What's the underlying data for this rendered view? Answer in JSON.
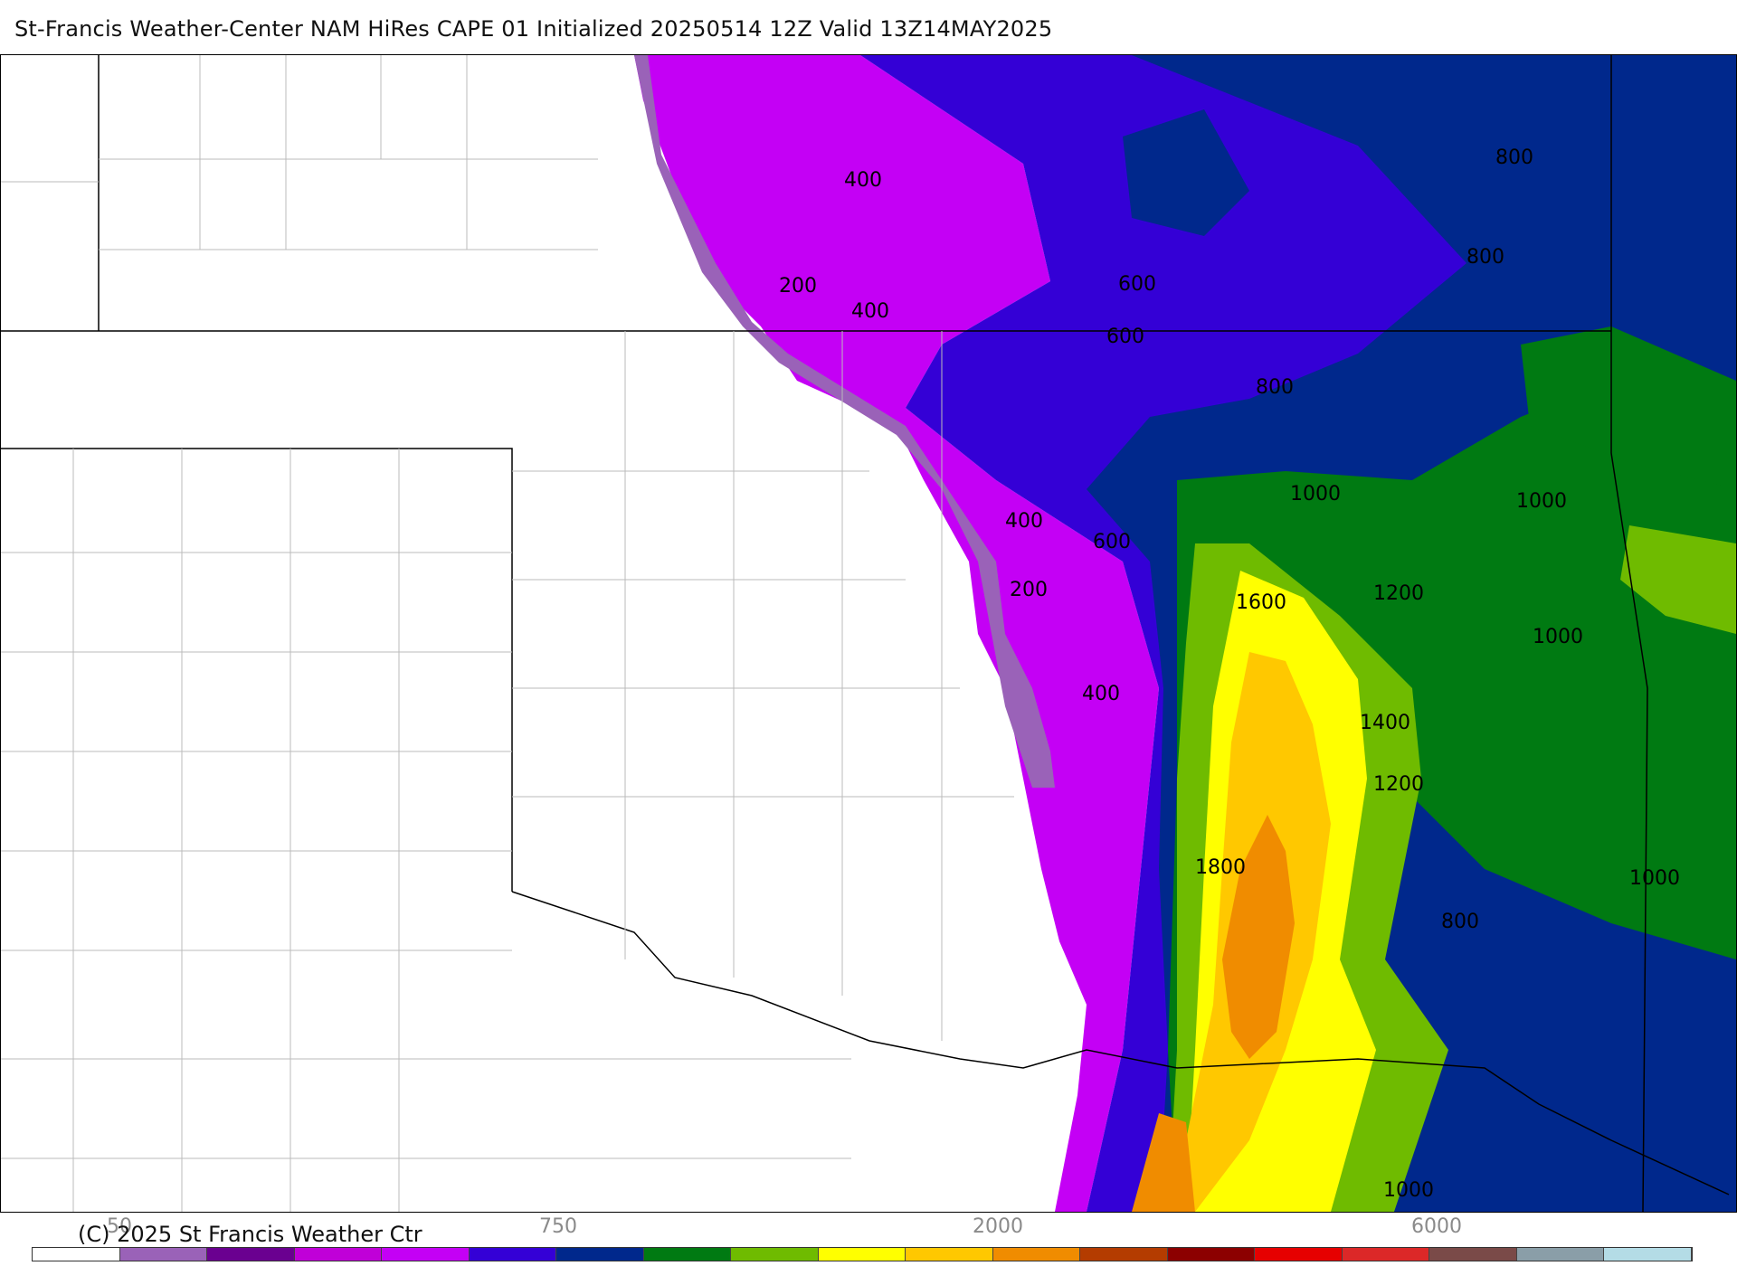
{
  "title": "St-Francis Weather-Center NAM HiRes CAPE  01 Initialized 20250514 12Z Valid 13Z14MAY2025",
  "copyright": "(C) 2025 St Francis Weather Ctr",
  "scale_labels": [
    "50",
    "750",
    "2000",
    "6000"
  ],
  "colorbar_colors": [
    "#ffffff",
    "#9a62b8",
    "#6a0090",
    "#c000d8",
    "#c400f5",
    "#3400d6",
    "#00288c",
    "#007a12",
    "#6fbb00",
    "#ffff00",
    "#ffc800",
    "#f08c00",
    "#b43c00",
    "#8c0000",
    "#e60000",
    "#dc2828",
    "#7a4a48",
    "#8a9ea8",
    "#b4dce6"
  ],
  "contour_labels": [
    {
      "text": "400"
    },
    {
      "text": "200"
    },
    {
      "text": "400"
    },
    {
      "text": "600"
    },
    {
      "text": "600"
    },
    {
      "text": "800"
    },
    {
      "text": "800"
    },
    {
      "text": "800"
    },
    {
      "text": "1000"
    },
    {
      "text": "1000"
    },
    {
      "text": "400"
    },
    {
      "text": "600"
    },
    {
      "text": "200"
    },
    {
      "text": "1600"
    },
    {
      "text": "1200"
    },
    {
      "text": "1000"
    },
    {
      "text": "400"
    },
    {
      "text": "1400"
    },
    {
      "text": "1200"
    },
    {
      "text": "1800"
    },
    {
      "text": "1000"
    },
    {
      "text": "800"
    },
    {
      "text": "1000"
    }
  ],
  "legend_colors": {
    "light_purple": "#9a62b8",
    "dark_purple": "#6a0090",
    "magenta": "#c400f5",
    "blue_violet": "#3400d6",
    "navy": "#00288c",
    "green": "#007a12",
    "light_green": "#6fbb00",
    "yellow": "#ffff00",
    "gold": "#ffc800",
    "orange": "#f08c00"
  }
}
